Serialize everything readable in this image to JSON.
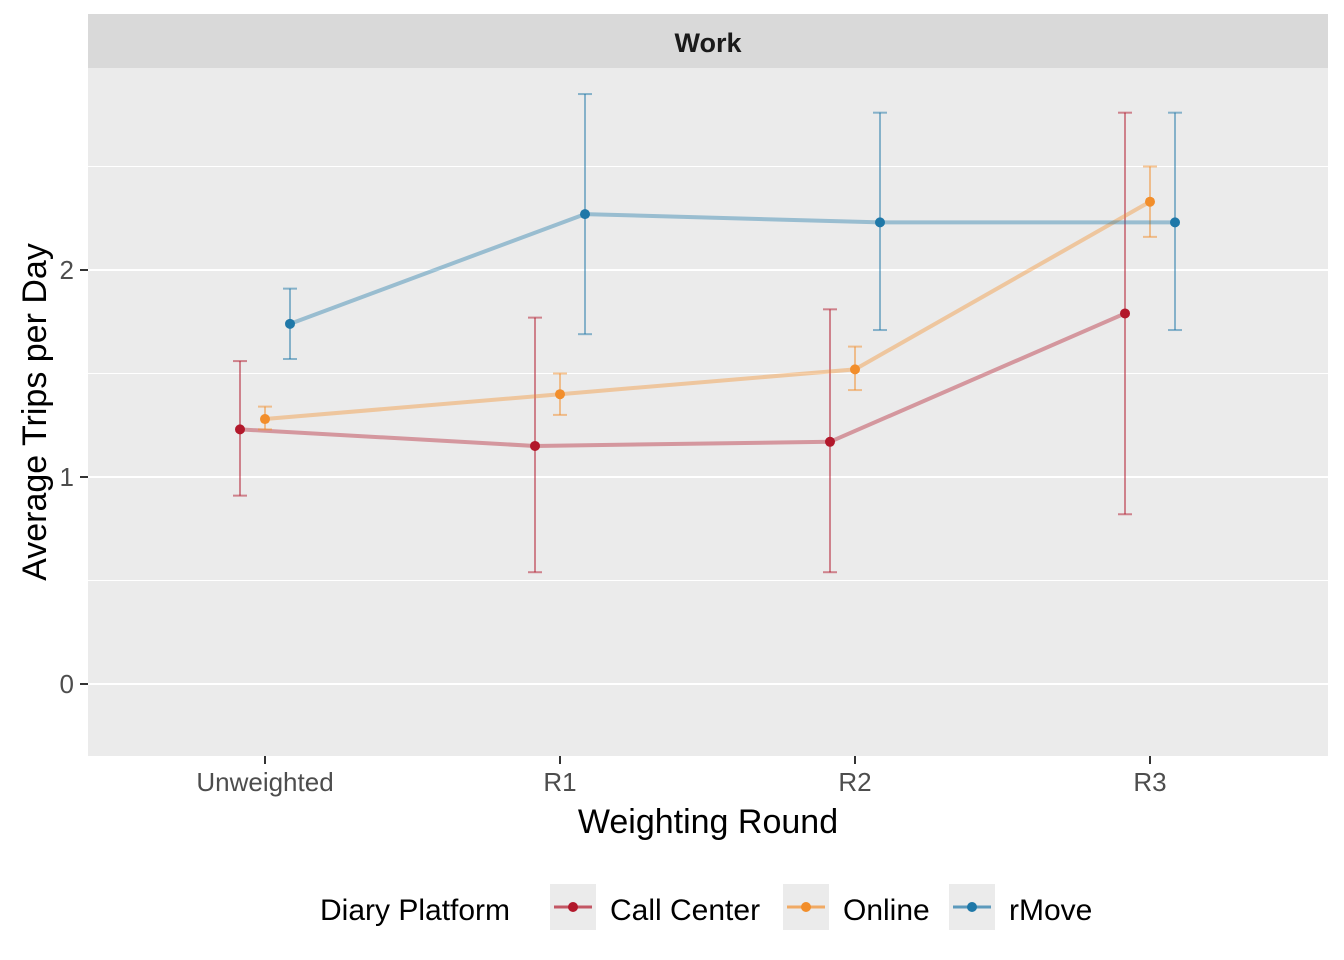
{
  "chart_data": {
    "type": "line",
    "facet": "Work",
    "xlabel": "Weighting Round",
    "ylabel": "Average Trips per Day",
    "categories": [
      "Unweighted",
      "R1",
      "R2",
      "R3"
    ],
    "ylim": [
      -0.35,
      3.0
    ],
    "yticks": [
      0,
      1,
      2
    ],
    "grid": true,
    "legend_title": "Diary Platform",
    "legend_position": "bottom",
    "series": [
      {
        "name": "Call Center",
        "color": "#B2182B",
        "values": [
          1.23,
          1.15,
          1.17,
          1.79
        ],
        "lower": [
          0.91,
          0.54,
          0.54,
          0.82
        ],
        "upper": [
          1.56,
          1.77,
          1.81,
          2.76
        ]
      },
      {
        "name": "Online",
        "color": "#F28E2B",
        "values": [
          1.28,
          1.4,
          1.52,
          2.33
        ],
        "lower": [
          1.23,
          1.3,
          1.42,
          2.16
        ],
        "upper": [
          1.34,
          1.5,
          1.63,
          2.5
        ]
      },
      {
        "name": "rMove",
        "color": "#1F78A8",
        "values": [
          1.74,
          2.27,
          2.23,
          2.23
        ],
        "lower": [
          1.57,
          1.69,
          1.71,
          1.71
        ],
        "upper": [
          1.91,
          2.85,
          2.76,
          2.76
        ]
      }
    ]
  }
}
